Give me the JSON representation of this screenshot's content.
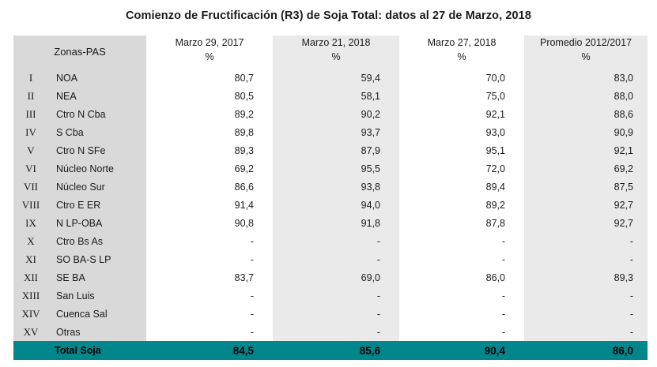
{
  "title": "Comienzo de Fructificación (R3) de Soja Total: datos al 27 de Marzo, 2018",
  "table": {
    "zone_header": "Zonas-PAS",
    "columns": [
      {
        "label": "Marzo 29, 2017",
        "unit": "%"
      },
      {
        "label": "Marzo 21, 2018",
        "unit": "%"
      },
      {
        "label": "Marzo 27, 2018",
        "unit": "%"
      },
      {
        "label": "Promedio 2012/2017",
        "unit": "%"
      }
    ],
    "rows": [
      {
        "roman": "I",
        "zona": "NOA",
        "v": [
          "80,7",
          "59,4",
          "70,0",
          "83,0"
        ]
      },
      {
        "roman": "II",
        "zona": "NEA",
        "v": [
          "80,5",
          "58,1",
          "75,0",
          "88,0"
        ]
      },
      {
        "roman": "III",
        "zona": "Ctro N Cba",
        "v": [
          "89,2",
          "90,2",
          "92,1",
          "88,6"
        ]
      },
      {
        "roman": "IV",
        "zona": "S Cba",
        "v": [
          "89,8",
          "93,7",
          "93,0",
          "90,9"
        ]
      },
      {
        "roman": "V",
        "zona": "Ctro N SFe",
        "v": [
          "89,3",
          "87,9",
          "95,1",
          "92,1"
        ]
      },
      {
        "roman": "VI",
        "zona": "Núcleo Norte",
        "v": [
          "69,2",
          "95,5",
          "72,0",
          "69,2"
        ]
      },
      {
        "roman": "VII",
        "zona": "Núcleo Sur",
        "v": [
          "86,6",
          "93,8",
          "89,4",
          "87,5"
        ]
      },
      {
        "roman": "VIII",
        "zona": "Ctro E ER",
        "v": [
          "91,4",
          "94,0",
          "89,2",
          "92,7"
        ]
      },
      {
        "roman": "IX",
        "zona": "N LP-OBA",
        "v": [
          "90,8",
          "91,8",
          "87,8",
          "92,7"
        ]
      },
      {
        "roman": "X",
        "zona": "Ctro Bs As",
        "v": [
          "-",
          "-",
          "-",
          "-"
        ]
      },
      {
        "roman": "XI",
        "zona": "SO BA-S LP",
        "v": [
          "-",
          "-",
          "-",
          "-"
        ]
      },
      {
        "roman": "XII",
        "zona": "SE BA",
        "v": [
          "83,7",
          "69,0",
          "86,0",
          "89,3"
        ]
      },
      {
        "roman": "XIII",
        "zona": "San Luis",
        "v": [
          "-",
          "-",
          "-",
          "-"
        ]
      },
      {
        "roman": "XIV",
        "zona": "Cuenca Sal",
        "v": [
          "-",
          "-",
          "-",
          "-"
        ]
      },
      {
        "roman": "XV",
        "zona": "Otras",
        "v": [
          "-",
          "-",
          "-",
          "-"
        ]
      }
    ],
    "total": {
      "label": "Total Soja",
      "v": [
        "84,5",
        "85,6",
        "90,4",
        "86,0"
      ]
    }
  }
}
